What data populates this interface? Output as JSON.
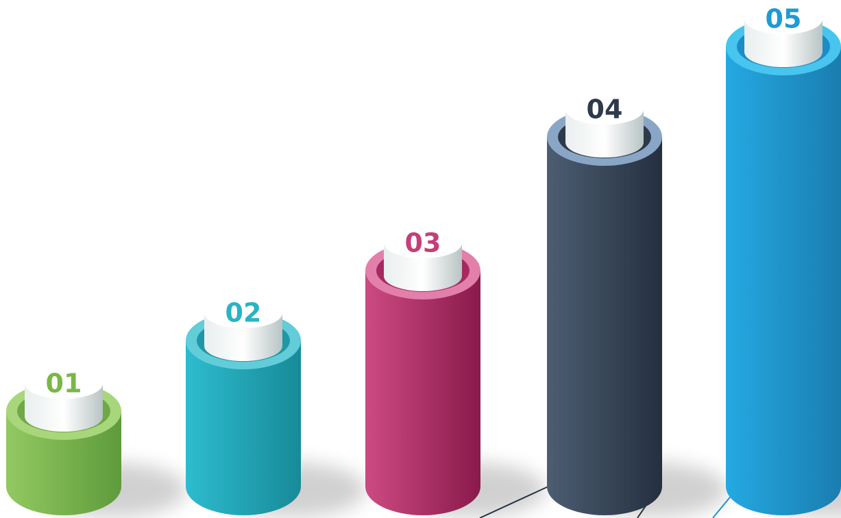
{
  "items": [
    {
      "label": "01"
    },
    {
      "label": "02"
    },
    {
      "label": "03"
    },
    {
      "label": "04"
    },
    {
      "label": "05"
    }
  ]
}
